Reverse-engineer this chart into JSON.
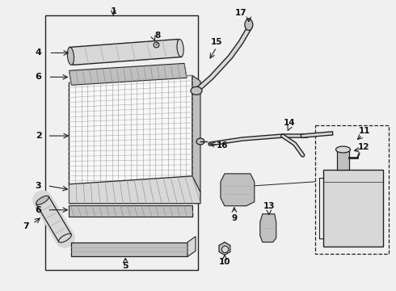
{
  "bg_color": "#f0f0f0",
  "line_color": "#222222",
  "part_fill": "#d8d8d8",
  "part_fill2": "#c0c0c0",
  "white": "#f8f8f8"
}
